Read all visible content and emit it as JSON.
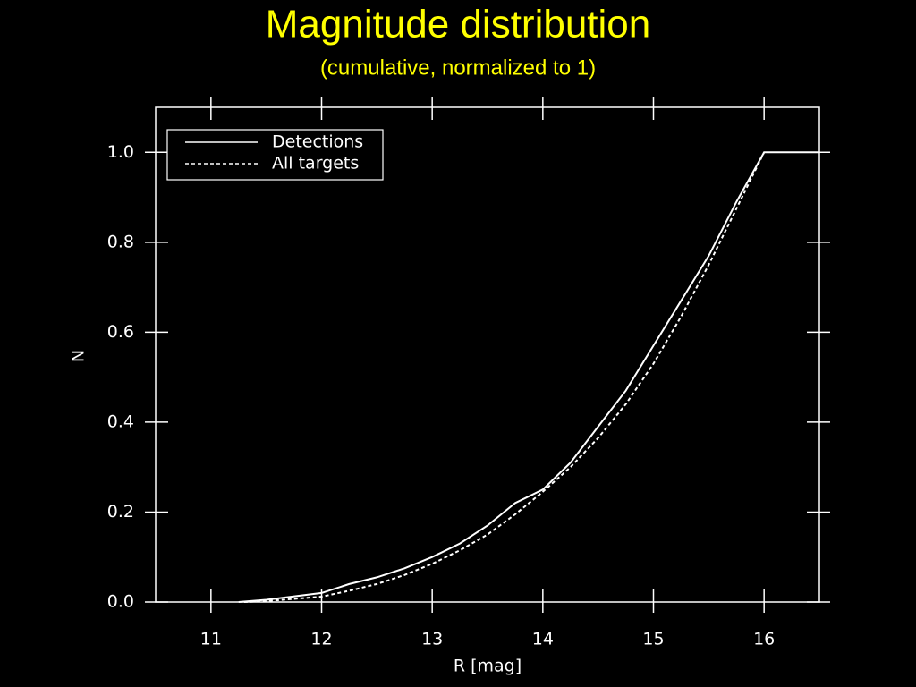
{
  "chart_data": {
    "type": "line",
    "title": "Magnitude distribution",
    "subtitle": "(cumulative, normalized to 1)",
    "x_label": "R [mag]",
    "y_label": "N",
    "xlim": [
      10.5,
      16.5
    ],
    "ylim": [
      0,
      1.1
    ],
    "xticks": [
      11,
      12,
      13,
      14,
      15,
      16
    ],
    "yticks": [
      {
        "value": 0,
        "label": "0.0"
      },
      0.2,
      0.4,
      0.6,
      0.8,
      {
        "value": 1,
        "label": "1.0"
      }
    ],
    "legend_position": "upper left",
    "series": [
      {
        "name": "Detections",
        "color": "#ffffff",
        "style": "solid",
        "x": [
          11.25,
          11.5,
          12.0,
          12.25,
          12.5,
          12.75,
          13.0,
          13.25,
          13.5,
          13.75,
          14.0,
          14.25,
          14.5,
          14.75,
          15.0,
          15.25,
          15.5,
          15.75,
          16.0,
          16.5
        ],
        "values": [
          0.0,
          0.005,
          0.02,
          0.04,
          0.055,
          0.075,
          0.1,
          0.13,
          0.17,
          0.22,
          0.25,
          0.31,
          0.39,
          0.47,
          0.57,
          0.67,
          0.77,
          0.89,
          1.0,
          1.0
        ]
      },
      {
        "name": "All targets",
        "color": "#ffffff",
        "style": "dashed",
        "x": [
          11.3,
          11.5,
          12.0,
          12.25,
          12.5,
          12.75,
          13.0,
          13.25,
          13.5,
          13.75,
          14.0,
          14.25,
          14.5,
          14.75,
          15.0,
          15.25,
          15.5,
          15.75,
          16.0
        ],
        "values": [
          0.0,
          0.002,
          0.012,
          0.025,
          0.04,
          0.06,
          0.085,
          0.115,
          0.15,
          0.195,
          0.245,
          0.3,
          0.365,
          0.44,
          0.53,
          0.635,
          0.75,
          0.875,
          1.0
        ]
      }
    ]
  }
}
